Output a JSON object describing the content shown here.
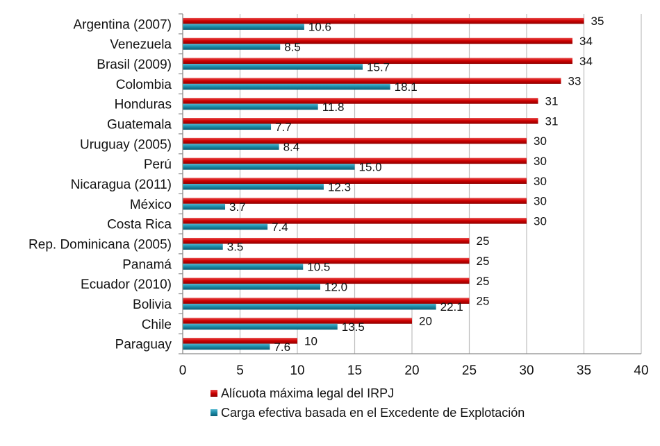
{
  "chart_data": {
    "type": "bar",
    "orientation": "horizontal",
    "categories": [
      "Argentina (2007)",
      "Venezuela",
      "Brasil (2009)",
      "Colombia",
      "Honduras",
      "Guatemala",
      "Uruguay (2005)",
      "Perú",
      "Nicaragua (2011)",
      "México",
      "Costa Rica",
      "Rep. Dominicana (2005)",
      "Panamá",
      "Ecuador (2010)",
      "Bolivia",
      "Chile",
      "Paraguay"
    ],
    "series": [
      {
        "name": "Alícuota máxima legal del IRPJ",
        "color": "#cc0000",
        "values": [
          35,
          34,
          34,
          33,
          31,
          31,
          30,
          30,
          30,
          30,
          30,
          25,
          25,
          25,
          25,
          20,
          10
        ],
        "labels": [
          "35",
          "34",
          "34",
          "33",
          "31",
          "31",
          "30",
          "30",
          "30",
          "30",
          "30",
          "25",
          "25",
          "25",
          "25",
          "20",
          "10"
        ]
      },
      {
        "name": "Carga efectiva basada en el Excedente de Explotación",
        "color": "#1a8aa6",
        "values": [
          10.6,
          8.5,
          15.7,
          18.1,
          11.8,
          7.7,
          8.4,
          15.0,
          12.3,
          3.7,
          7.4,
          3.5,
          10.5,
          12.0,
          22.1,
          13.5,
          7.6
        ],
        "labels": [
          "10.6",
          "8.5",
          "15.7",
          "18.1",
          "11.8",
          "7.7",
          "8.4",
          "15.0",
          "12.3",
          "3.7",
          "7.4",
          "3.5",
          "10.5",
          "12.0",
          "22.1",
          "13.5",
          "7.6"
        ]
      }
    ],
    "xlim": [
      0,
      40
    ],
    "xticks": [
      "0",
      "5",
      "10",
      "15",
      "20",
      "25",
      "30",
      "35",
      "40"
    ],
    "grid": true,
    "legend_position": "bottom"
  }
}
